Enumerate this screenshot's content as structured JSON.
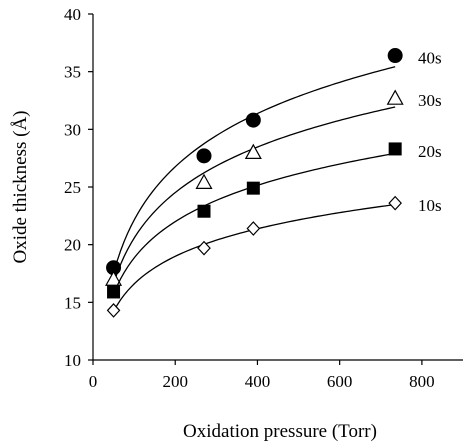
{
  "chart_data": {
    "type": "scatter",
    "xlabel": "Oxidation pressure (Torr)",
    "ylabel": "Oxide thickness (Å)",
    "xlim": [
      0,
      900
    ],
    "ylim": [
      10,
      40
    ],
    "xticks": [
      0,
      200,
      400,
      600,
      800
    ],
    "yticks": [
      10,
      15,
      20,
      25,
      30,
      35,
      40
    ],
    "x": [
      50,
      270,
      390,
      735
    ],
    "series": [
      {
        "name": "40s",
        "marker": "filled-circle",
        "values": [
          18.0,
          27.7,
          30.8,
          36.4
        ]
      },
      {
        "name": "30s",
        "marker": "open-triangle",
        "values": [
          17.0,
          25.4,
          28.0,
          32.7
        ]
      },
      {
        "name": "20s",
        "marker": "filled-square",
        "values": [
          15.9,
          22.9,
          24.9,
          28.3
        ]
      },
      {
        "name": "10s",
        "marker": "open-diamond",
        "values": [
          14.3,
          19.7,
          21.4,
          23.6
        ]
      }
    ],
    "trend_lines": "smooth fit curves through each series",
    "grid": false,
    "legend": "series labels at right end of each curve"
  }
}
